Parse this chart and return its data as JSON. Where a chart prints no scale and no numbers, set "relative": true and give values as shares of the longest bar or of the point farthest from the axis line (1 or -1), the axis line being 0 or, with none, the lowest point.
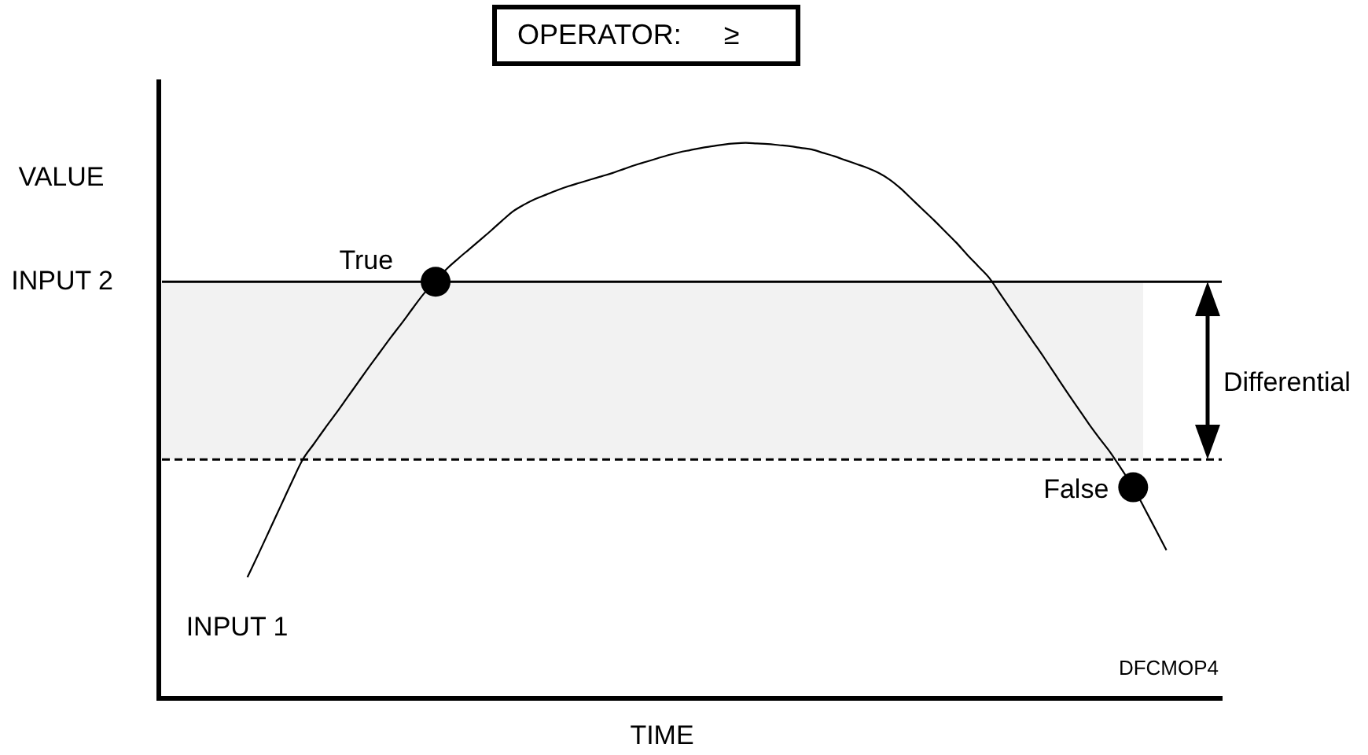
{
  "chart_data": {
    "type": "line",
    "title": "OPERATOR: ≥",
    "xlabel": "TIME",
    "ylabel": "VALUE",
    "relative": true,
    "categories": [
      null,
      null,
      null,
      null,
      null,
      null,
      null,
      null,
      null,
      null,
      null,
      null,
      null,
      null,
      null,
      null,
      null,
      null,
      null,
      null,
      null,
      null,
      null,
      null,
      null,
      null,
      null,
      null,
      null,
      null,
      null,
      null,
      null,
      null,
      null,
      null,
      null,
      null,
      null,
      null,
      null,
      null,
      null,
      null,
      null,
      null,
      null,
      null,
      null,
      null,
      null,
      null,
      null,
      null,
      null,
      null,
      null,
      null,
      null,
      null,
      null,
      null,
      null,
      null,
      null,
      null,
      null,
      null,
      null,
      null,
      null,
      null,
      null,
      null,
      null,
      null,
      null,
      null,
      null,
      null,
      null,
      null,
      null,
      null,
      null,
      null,
      null,
      null,
      null,
      null,
      null,
      null,
      null,
      null,
      null,
      null,
      null
    ],
    "series": [
      {
        "name": "INPUT 1",
        "color": "#000000",
        "values": [
          null,
          null,
          null,
          null,
          null,
          null,
          null,
          null,
          0.218,
          0.26,
          0.303,
          0.346,
          0.389,
          0.43,
          0.458,
          0.486,
          0.513,
          0.541,
          0.569,
          0.597,
          0.624,
          0.651,
          0.677,
          0.704,
          0.73,
          0.75,
          0.773,
          0.791,
          0.808,
          0.825,
          0.842,
          0.86,
          0.877,
          0.889,
          0.899,
          0.907,
          0.915,
          0.922,
          0.928,
          0.934,
          0.94,
          0.946,
          0.953,
          0.96,
          0.966,
          0.972,
          0.978,
          0.983,
          0.987,
          0.991,
          0.994,
          0.997,
          0.999,
          1,
          0.999,
          0.998,
          0.996,
          0.994,
          0.991,
          0.988,
          0.982,
          0.976,
          0.969,
          0.962,
          0.955,
          0.946,
          0.934,
          0.918,
          0.899,
          0.88,
          0.861,
          0.841,
          0.821,
          0.799,
          0.778,
          0.757,
          0.728,
          0.699,
          0.67,
          0.641,
          0.612,
          0.582,
          0.552,
          0.523,
          0.494,
          0.467,
          0.441,
          0.411,
          0.38,
          0.343,
          0.305,
          0.267,
          null,
          null,
          null,
          null,
          null
        ]
      },
      {
        "color": "#000000",
        "marker": "circle",
        "values": [
          null,
          null,
          null,
          null,
          null,
          null,
          null,
          null,
          null,
          null,
          null,
          null,
          null,
          null,
          null,
          null,
          null,
          null,
          null,
          null,
          null,
          null,
          null,
          null,
          null,
          0.75,
          null,
          null,
          null,
          null,
          null,
          null,
          null,
          null,
          null,
          null,
          null,
          null,
          null,
          null,
          null,
          null,
          null,
          null,
          null,
          null,
          null,
          null,
          null,
          null,
          null,
          null,
          null,
          null,
          null,
          null,
          null,
          null,
          null,
          null,
          null,
          null,
          null,
          null,
          null,
          null,
          null,
          null,
          null,
          null,
          null,
          null,
          null,
          null,
          null,
          null,
          null,
          null,
          null,
          null,
          null,
          null,
          null,
          null,
          null,
          null,
          null,
          null,
          0.38,
          null,
          null,
          null,
          null,
          null,
          null,
          null,
          null
        ]
      }
    ],
    "ref_lines": [
      {
        "axis": "y",
        "value": 0.75,
        "label": "INPUT 2",
        "color": "#000000"
      },
      {
        "axis": "y",
        "value": 0.43,
        "color": "#000000",
        "line_style": "dashed"
      }
    ],
    "bands": [
      {
        "axis": "y",
        "from": 0.43,
        "to": 0.75,
        "label": "Differential",
        "color": "#f2f2f2"
      }
    ],
    "annotations": [
      "True",
      "False",
      "DFCMOP4"
    ]
  }
}
